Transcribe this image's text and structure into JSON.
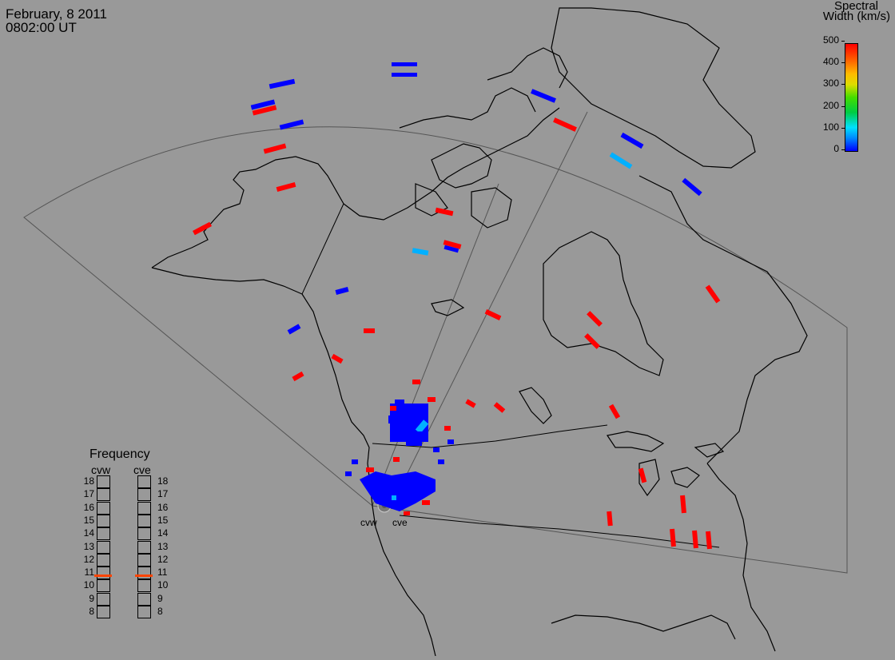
{
  "header": {
    "date": "February, 8 2011",
    "time": "0802:00 UT"
  },
  "colorbar": {
    "title_line1": "Spectral",
    "title_line2": "Width (km/s)",
    "ticks": [
      "500",
      "400",
      "300",
      "200",
      "100",
      "0"
    ],
    "range": [
      0,
      500
    ]
  },
  "frequency_panel": {
    "title": "Frequency",
    "radars": [
      "cvw",
      "cve"
    ],
    "levels": [
      "18",
      "17",
      "16",
      "15",
      "14",
      "13",
      "12",
      "11",
      "10",
      "9",
      "8"
    ],
    "selected_frequency": {
      "cvw": 10.8,
      "cve": 10.8
    }
  },
  "radar_sites": [
    "cvw",
    "cve"
  ],
  "colors": {
    "background": "#999999",
    "low_width": "#0000ff",
    "mid_width": "#00b0ff",
    "high_width": "#ff0000"
  }
}
